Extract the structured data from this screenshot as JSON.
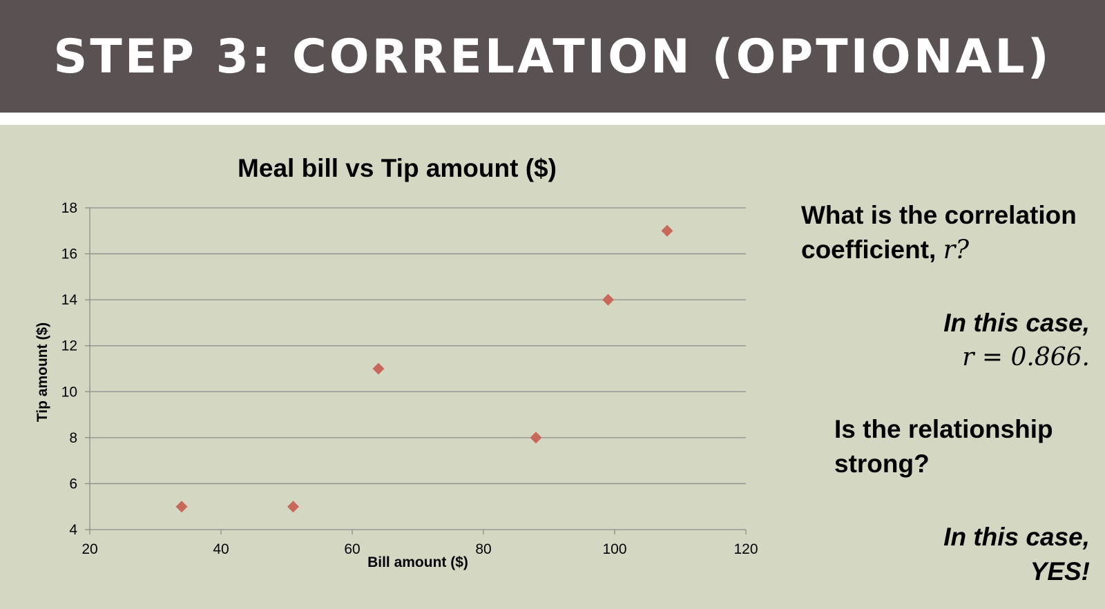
{
  "slide": {
    "title": "STEP 3: CORRELATION (OPTIONAL)"
  },
  "chart_data": {
    "type": "scatter",
    "title": "Meal bill vs Tip amount ($)",
    "xlabel": "Bill amount ($)",
    "ylabel": "Tip amount ($)",
    "xlim": [
      20,
      120
    ],
    "ylim": [
      4,
      18
    ],
    "xticks": [
      20,
      40,
      60,
      80,
      100,
      120
    ],
    "yticks": [
      4,
      6,
      8,
      10,
      12,
      14,
      16,
      18
    ],
    "grid": "horizontal",
    "marker": "diamond",
    "color": "#c8685a",
    "points": [
      {
        "x": 34,
        "y": 5
      },
      {
        "x": 51,
        "y": 5
      },
      {
        "x": 64,
        "y": 11
      },
      {
        "x": 88,
        "y": 8
      },
      {
        "x": 99,
        "y": 14
      },
      {
        "x": 108,
        "y": 17
      }
    ]
  },
  "panel": {
    "question1_text": "What is the correlation coefficient,",
    "question1_var": "r",
    "question1_end": "?",
    "answer1_line1": "In this case,",
    "answer1_line2": "r = 0.866.",
    "question2": "Is the relationship strong?",
    "answer2_line1": "In this case,",
    "answer2_line2": "YES!"
  },
  "colors": {
    "header_bg": "#5a5152",
    "slide_bg": "#d4d7c2",
    "marker": "#c8685a",
    "gridline": "#8c8c8c"
  }
}
